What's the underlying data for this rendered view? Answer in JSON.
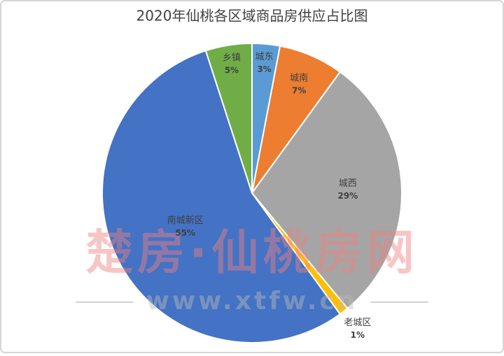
{
  "chart_data": {
    "type": "pie",
    "title": "2020年仙桃各区域商品房供应占比图",
    "categories": [
      "城东",
      "城南",
      "城西",
      "老城区",
      "南城新区",
      "乡镇"
    ],
    "values": [
      3,
      7,
      29,
      1,
      55,
      5
    ],
    "value_labels": [
      "3%",
      "7%",
      "29%",
      "1%",
      "55%",
      "5%"
    ],
    "colors": [
      "#5b9bd5",
      "#ed7d31",
      "#a5a5a5",
      "#ffc000",
      "#4472c4",
      "#70ad47"
    ],
    "watermark": "楚房·仙桃房网",
    "watermark_url": "www.xtfw.cn"
  }
}
